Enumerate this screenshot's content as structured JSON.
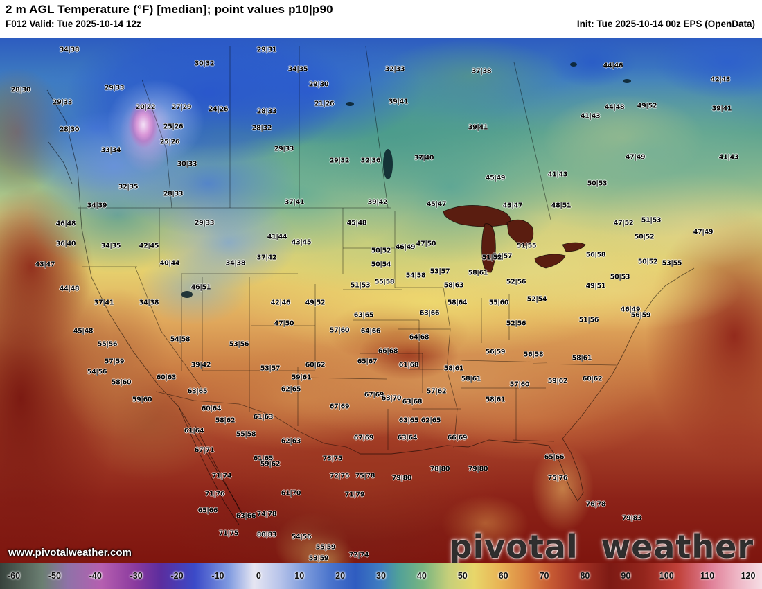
{
  "header": {
    "title": "2 m AGL Temperature (°F) [median]; point values p10|p90",
    "valid": "F012 Valid: Tue 2025-10-14 12z",
    "init": "Init: Tue 2025-10-14 00z EPS (OpenData)"
  },
  "footer": {
    "url": "www.pivotalweather.com",
    "brand": "pivotal weather"
  },
  "colorbar": {
    "min": -60,
    "max": 120,
    "units": "°F",
    "ticks": [
      -60,
      -50,
      -40,
      -30,
      -20,
      -10,
      0,
      10,
      20,
      30,
      40,
      50,
      60,
      70,
      80,
      90,
      100,
      110,
      120
    ],
    "stops": [
      {
        "v": -60,
        "c": "#37423c"
      },
      {
        "v": -50,
        "c": "#6b7f72"
      },
      {
        "v": -44,
        "c": "#8f72a8"
      },
      {
        "v": -36,
        "c": "#b55fb0"
      },
      {
        "v": -28,
        "c": "#8a3a9e"
      },
      {
        "v": -22,
        "c": "#5b2d9e"
      },
      {
        "v": -14,
        "c": "#3b4ac8"
      },
      {
        "v": -6,
        "c": "#7f9ae0"
      },
      {
        "v": 0,
        "c": "#e6e6f2"
      },
      {
        "v": 6,
        "c": "#b8c4ea"
      },
      {
        "v": 12,
        "c": "#7d9bdc"
      },
      {
        "v": 18,
        "c": "#4a74cc"
      },
      {
        "v": 24,
        "c": "#2f5cc0"
      },
      {
        "v": 30,
        "c": "#3f7ec0"
      },
      {
        "v": 34,
        "c": "#4fa09a"
      },
      {
        "v": 40,
        "c": "#79b580"
      },
      {
        "v": 46,
        "c": "#c6cf7a"
      },
      {
        "v": 52,
        "c": "#e8d66a"
      },
      {
        "v": 58,
        "c": "#e8b455"
      },
      {
        "v": 64,
        "c": "#dd8a44"
      },
      {
        "v": 70,
        "c": "#c75b33"
      },
      {
        "v": 76,
        "c": "#a93527"
      },
      {
        "v": 84,
        "c": "#7d1a14"
      },
      {
        "v": 92,
        "c": "#93251c"
      },
      {
        "v": 100,
        "c": "#c04038"
      },
      {
        "v": 108,
        "c": "#e08098"
      },
      {
        "v": 114,
        "c": "#eeb4c4"
      },
      {
        "v": 120,
        "c": "#f6dde4"
      }
    ]
  },
  "map": {
    "points": [
      [
        100,
        72,
        "34|38"
      ],
      [
        385,
        72,
        "29|31"
      ],
      [
        295,
        92,
        "30|32"
      ],
      [
        430,
        100,
        "34|35"
      ],
      [
        570,
        100,
        "32|33"
      ],
      [
        695,
        103,
        "37|38"
      ],
      [
        885,
        95,
        "44|46"
      ],
      [
        30,
        130,
        "28|30"
      ],
      [
        165,
        127,
        "29|33"
      ],
      [
        460,
        122,
        "29|30"
      ],
      [
        1040,
        115,
        "42|43"
      ],
      [
        90,
        148,
        "29|33"
      ],
      [
        210,
        155,
        "20|22"
      ],
      [
        262,
        155,
        "27|29"
      ],
      [
        315,
        158,
        "24|26"
      ],
      [
        385,
        161,
        "28|33"
      ],
      [
        468,
        150,
        "21|26"
      ],
      [
        575,
        147,
        "39|41"
      ],
      [
        852,
        168,
        "41|43"
      ],
      [
        887,
        155,
        "44|48"
      ],
      [
        934,
        153,
        "49|52"
      ],
      [
        1042,
        157,
        "39|41"
      ],
      [
        100,
        187,
        "28|30"
      ],
      [
        250,
        183,
        "25|26"
      ],
      [
        378,
        185,
        "28|32"
      ],
      [
        690,
        184,
        "39|41"
      ],
      [
        160,
        217,
        "33|34"
      ],
      [
        245,
        205,
        "25|26"
      ],
      [
        410,
        215,
        "29|33"
      ],
      [
        612,
        228,
        "37|40"
      ],
      [
        917,
        227,
        "47|49"
      ],
      [
        1052,
        227,
        "41|43"
      ],
      [
        270,
        237,
        "30|33"
      ],
      [
        490,
        232,
        "29|32"
      ],
      [
        535,
        232,
        "32|36"
      ],
      [
        185,
        270,
        "32|35"
      ],
      [
        250,
        280,
        "28|33"
      ],
      [
        715,
        257,
        "45|49"
      ],
      [
        805,
        252,
        "41|43"
      ],
      [
        862,
        265,
        "50|53"
      ],
      [
        140,
        297,
        "34|39"
      ],
      [
        295,
        322,
        "29|33"
      ],
      [
        425,
        292,
        "37|41"
      ],
      [
        545,
        292,
        "39|42"
      ],
      [
        630,
        295,
        "45|47"
      ],
      [
        740,
        297,
        "43|47"
      ],
      [
        810,
        297,
        "48|51"
      ],
      [
        95,
        323,
        "46|48"
      ],
      [
        515,
        322,
        "45|48"
      ],
      [
        900,
        322,
        "47|52"
      ],
      [
        940,
        318,
        "51|53"
      ],
      [
        1015,
        335,
        "47|49"
      ],
      [
        930,
        342,
        "50|52"
      ],
      [
        95,
        352,
        "36|40"
      ],
      [
        160,
        355,
        "34|35"
      ],
      [
        215,
        355,
        "42|45"
      ],
      [
        400,
        342,
        "41|44"
      ],
      [
        435,
        350,
        "43|45"
      ],
      [
        585,
        357,
        "46|49"
      ],
      [
        615,
        352,
        "47|50"
      ],
      [
        760,
        355,
        "51|55"
      ],
      [
        725,
        370,
        "54|57"
      ],
      [
        65,
        382,
        "43|47"
      ],
      [
        245,
        380,
        "40|44"
      ],
      [
        340,
        380,
        "34|38"
      ],
      [
        385,
        372,
        "37|42"
      ],
      [
        550,
        362,
        "50|52"
      ],
      [
        550,
        382,
        "50|54"
      ],
      [
        635,
        392,
        "53|57"
      ],
      [
        690,
        394,
        "58|61"
      ],
      [
        710,
        372,
        "51|52"
      ],
      [
        860,
        368,
        "56|58"
      ],
      [
        935,
        378,
        "50|52"
      ],
      [
        970,
        380,
        "53|55"
      ],
      [
        100,
        417,
        "44|48"
      ],
      [
        290,
        415,
        "46|51"
      ],
      [
        520,
        412,
        "51|53"
      ],
      [
        555,
        407,
        "55|58"
      ],
      [
        600,
        398,
        "54|58"
      ],
      [
        655,
        412,
        "58|63"
      ],
      [
        745,
        407,
        "52|56"
      ],
      [
        860,
        413,
        "49|51"
      ],
      [
        895,
        400,
        "50|53"
      ],
      [
        150,
        437,
        "37|41"
      ],
      [
        215,
        437,
        "34|38"
      ],
      [
        405,
        437,
        "42|46"
      ],
      [
        455,
        437,
        "49|52"
      ],
      [
        525,
        455,
        "63|65"
      ],
      [
        620,
        452,
        "63|66"
      ],
      [
        660,
        437,
        "58|64"
      ],
      [
        720,
        437,
        "55|60"
      ],
      [
        775,
        432,
        "52|54"
      ],
      [
        910,
        447,
        "46|49"
      ],
      [
        925,
        455,
        "56|59"
      ],
      [
        120,
        478,
        "45|48"
      ],
      [
        410,
        467,
        "47|50"
      ],
      [
        490,
        477,
        "57|60"
      ],
      [
        535,
        478,
        "64|66"
      ],
      [
        605,
        487,
        "64|68"
      ],
      [
        745,
        467,
        "52|56"
      ],
      [
        850,
        462,
        "51|56"
      ],
      [
        155,
        497,
        "55|56"
      ],
      [
        260,
        490,
        "54|58"
      ],
      [
        345,
        497,
        "53|56"
      ],
      [
        715,
        508,
        "56|59"
      ],
      [
        770,
        512,
        "56|58"
      ],
      [
        165,
        522,
        "57|59"
      ],
      [
        290,
        527,
        "39|42"
      ],
      [
        390,
        532,
        "53|57"
      ],
      [
        455,
        527,
        "60|62"
      ],
      [
        530,
        522,
        "65|67"
      ],
      [
        560,
        507,
        "66|68"
      ],
      [
        590,
        527,
        "61|68"
      ],
      [
        655,
        532,
        "58|61"
      ],
      [
        840,
        517,
        "58|61"
      ],
      [
        140,
        537,
        "54|56"
      ],
      [
        240,
        545,
        "60|63"
      ],
      [
        435,
        545,
        "59|61"
      ],
      [
        680,
        547,
        "58|61"
      ],
      [
        750,
        555,
        "57|60"
      ],
      [
        805,
        550,
        "59|62"
      ],
      [
        855,
        547,
        "60|62"
      ],
      [
        175,
        552,
        "58|60"
      ],
      [
        285,
        565,
        "63|65"
      ],
      [
        420,
        562,
        "62|65"
      ],
      [
        540,
        570,
        "67|69"
      ],
      [
        565,
        575,
        "63|70"
      ],
      [
        630,
        565,
        "57|62"
      ],
      [
        205,
        577,
        "59|60"
      ],
      [
        595,
        580,
        "63|68"
      ],
      [
        715,
        577,
        "58|61"
      ],
      [
        305,
        590,
        "60|64"
      ],
      [
        490,
        587,
        "67|69"
      ],
      [
        325,
        607,
        "58|62"
      ],
      [
        380,
        602,
        "61|63"
      ],
      [
        590,
        607,
        "63|65"
      ],
      [
        622,
        607,
        "62|65"
      ],
      [
        280,
        622,
        "61|64"
      ],
      [
        355,
        627,
        "55|58"
      ],
      [
        420,
        637,
        "62|63"
      ],
      [
        525,
        632,
        "67|69"
      ],
      [
        588,
        632,
        "63|64"
      ],
      [
        660,
        632,
        "66|69"
      ],
      [
        295,
        650,
        "67|71"
      ],
      [
        380,
        662,
        "61|65"
      ],
      [
        480,
        662,
        "73|75"
      ],
      [
        800,
        660,
        "65|66"
      ],
      [
        320,
        687,
        "71|74"
      ],
      [
        390,
        670,
        "59|62"
      ],
      [
        490,
        687,
        "72|75"
      ],
      [
        527,
        687,
        "75|78"
      ],
      [
        580,
        690,
        "79|80"
      ],
      [
        635,
        677,
        "78|80"
      ],
      [
        690,
        677,
        "79|80"
      ],
      [
        310,
        713,
        "71|76"
      ],
      [
        420,
        712,
        "61|70"
      ],
      [
        512,
        714,
        "71|79"
      ],
      [
        805,
        690,
        "75|76"
      ],
      [
        300,
        737,
        "65|66"
      ],
      [
        355,
        745,
        "63|66"
      ],
      [
        385,
        742,
        "74|78"
      ],
      [
        860,
        728,
        "76|78"
      ],
      [
        912,
        748,
        "79|83"
      ],
      [
        330,
        770,
        "71|75"
      ],
      [
        385,
        772,
        "80|83"
      ],
      [
        435,
        775,
        "54|56"
      ],
      [
        470,
        790,
        "55|59"
      ],
      [
        460,
        806,
        "53|59"
      ],
      [
        518,
        801,
        "72|74"
      ]
    ]
  }
}
